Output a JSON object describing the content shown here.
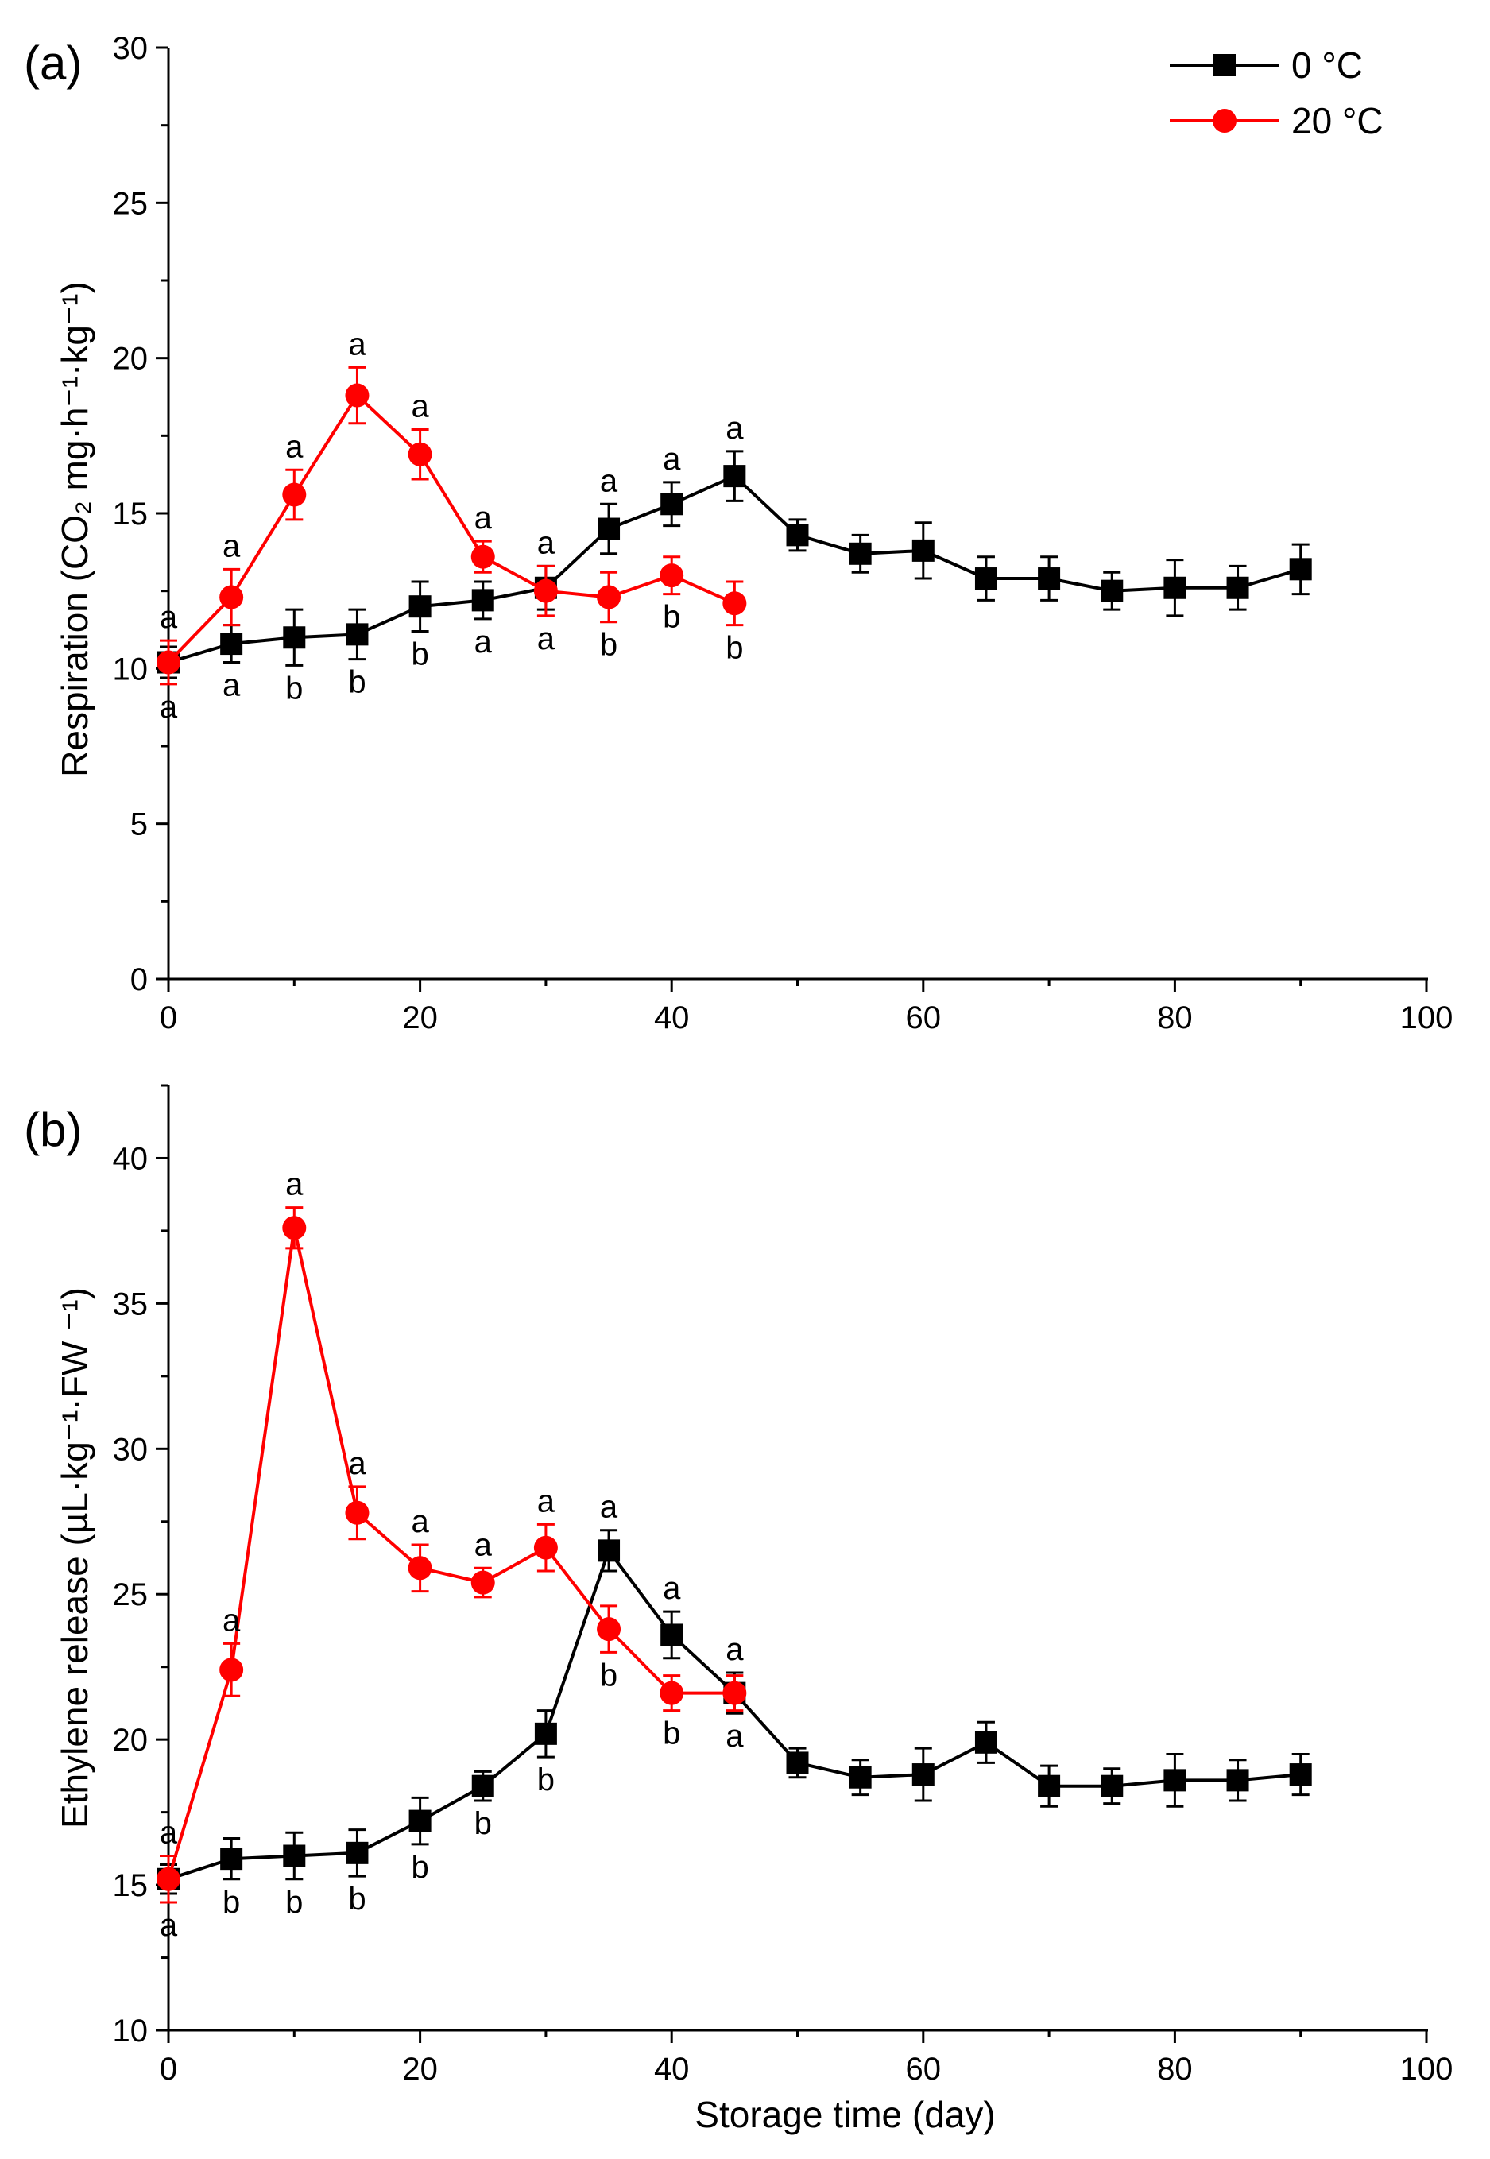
{
  "legend": {
    "items": [
      {
        "label": "0  °C",
        "color": "#000000",
        "marker": "square"
      },
      {
        "label": "20  °C",
        "color": "#ff0000",
        "marker": "circle"
      }
    ]
  },
  "chart_data": [
    {
      "type": "line",
      "panel_label": "(a)",
      "xlabel": "",
      "ylabel": "Respiration (CO₂ mg·h⁻¹·kg⁻¹)",
      "xlim": [
        0,
        100
      ],
      "ylim": [
        0,
        30
      ],
      "xticks": [
        0,
        20,
        40,
        60,
        80,
        100
      ],
      "yticks": [
        0,
        5,
        10,
        15,
        20,
        25,
        30
      ],
      "grid": false,
      "legend_position": "top-right",
      "series": [
        {
          "name": "0  °C",
          "color": "#000000",
          "marker": "square",
          "x": [
            0,
            5,
            10,
            15,
            20,
            25,
            30,
            35,
            40,
            45,
            50,
            55,
            60,
            65,
            70,
            75,
            80,
            85,
            90
          ],
          "y": [
            10.2,
            10.8,
            11.0,
            11.1,
            12.0,
            12.2,
            12.6,
            14.5,
            15.3,
            16.2,
            14.3,
            13.7,
            13.8,
            12.9,
            12.9,
            12.5,
            12.6,
            12.6,
            13.2
          ],
          "err": [
            0.5,
            0.6,
            0.9,
            0.8,
            0.8,
            0.6,
            0.7,
            0.8,
            0.7,
            0.8,
            0.5,
            0.6,
            0.9,
            0.7,
            0.7,
            0.6,
            0.9,
            0.7,
            0.8
          ]
        },
        {
          "name": "20  °C",
          "color": "#ff0000",
          "marker": "circle",
          "x": [
            0,
            5,
            10,
            15,
            20,
            25,
            30,
            35,
            40,
            45
          ],
          "y": [
            10.2,
            12.3,
            15.6,
            18.8,
            16.9,
            13.6,
            12.5,
            12.3,
            13.0,
            12.1
          ],
          "err": [
            0.7,
            0.9,
            0.8,
            0.9,
            0.8,
            0.5,
            0.8,
            0.8,
            0.6,
            0.7
          ]
        }
      ],
      "annotations": {
        "above": [
          {
            "x": 0,
            "text": "a"
          },
          {
            "x": 5,
            "text": "a"
          },
          {
            "x": 10,
            "text": "a"
          },
          {
            "x": 15,
            "text": "a"
          },
          {
            "x": 20,
            "text": "a"
          },
          {
            "x": 25,
            "text": "a"
          },
          {
            "x": 30,
            "text": "a"
          },
          {
            "x": 35,
            "text": "a"
          },
          {
            "x": 40,
            "text": "a"
          },
          {
            "x": 45,
            "text": "a"
          }
        ],
        "below": [
          {
            "x": 0,
            "text": "a"
          },
          {
            "x": 5,
            "text": "a"
          },
          {
            "x": 10,
            "text": "b"
          },
          {
            "x": 15,
            "text": "b"
          },
          {
            "x": 20,
            "text": "b"
          },
          {
            "x": 25,
            "text": "a"
          },
          {
            "x": 30,
            "text": "a"
          },
          {
            "x": 35,
            "text": "b"
          },
          {
            "x": 40,
            "text": "b"
          },
          {
            "x": 45,
            "text": "b"
          }
        ]
      }
    },
    {
      "type": "line",
      "panel_label": "(b)",
      "xlabel": "Storage time (day)",
      "ylabel": "Ethylene release (µL·kg⁻¹·FW ⁻¹)",
      "xlim": [
        0,
        100
      ],
      "ylim": [
        10,
        42.5
      ],
      "xticks": [
        0,
        20,
        40,
        60,
        80,
        100
      ],
      "yticks": [
        10,
        15,
        20,
        25,
        30,
        35,
        40
      ],
      "grid": false,
      "series": [
        {
          "name": "0  °C",
          "color": "#000000",
          "marker": "square",
          "x": [
            0,
            5,
            10,
            15,
            20,
            25,
            30,
            35,
            40,
            45,
            50,
            55,
            60,
            65,
            70,
            75,
            80,
            85,
            90
          ],
          "y": [
            15.2,
            15.9,
            16.0,
            16.1,
            17.2,
            18.4,
            20.2,
            26.5,
            23.6,
            21.6,
            19.2,
            18.7,
            18.8,
            19.9,
            18.4,
            18.4,
            18.6,
            18.6,
            18.8
          ],
          "err": [
            0.5,
            0.7,
            0.8,
            0.8,
            0.8,
            0.5,
            0.8,
            0.7,
            0.8,
            0.7,
            0.5,
            0.6,
            0.9,
            0.7,
            0.7,
            0.6,
            0.9,
            0.7,
            0.7
          ]
        },
        {
          "name": "20  °C",
          "color": "#ff0000",
          "marker": "circle",
          "x": [
            0,
            5,
            10,
            15,
            20,
            25,
            30,
            35,
            40,
            45
          ],
          "y": [
            15.2,
            22.4,
            37.6,
            27.8,
            25.9,
            25.4,
            26.6,
            23.8,
            21.6,
            21.6
          ],
          "err": [
            0.8,
            0.9,
            0.7,
            0.9,
            0.8,
            0.5,
            0.8,
            0.8,
            0.6,
            0.6
          ]
        }
      ],
      "annotations": {
        "above": [
          {
            "x": 0,
            "text": "a"
          },
          {
            "x": 5,
            "text": "a"
          },
          {
            "x": 10,
            "text": "a"
          },
          {
            "x": 15,
            "text": "a"
          },
          {
            "x": 20,
            "text": "a"
          },
          {
            "x": 25,
            "text": "a"
          },
          {
            "x": 30,
            "text": "a"
          },
          {
            "x": 35,
            "text": "a"
          },
          {
            "x": 40,
            "text": "a"
          },
          {
            "x": 45,
            "text": "a"
          }
        ],
        "below": [
          {
            "x": 0,
            "text": "a"
          },
          {
            "x": 5,
            "text": "b"
          },
          {
            "x": 10,
            "text": "b"
          },
          {
            "x": 15,
            "text": "b"
          },
          {
            "x": 20,
            "text": "b"
          },
          {
            "x": 25,
            "text": "b"
          },
          {
            "x": 30,
            "text": "b"
          },
          {
            "x": 35,
            "text": "b"
          },
          {
            "x": 40,
            "text": "b"
          },
          {
            "x": 45,
            "text": "a"
          }
        ]
      }
    }
  ]
}
